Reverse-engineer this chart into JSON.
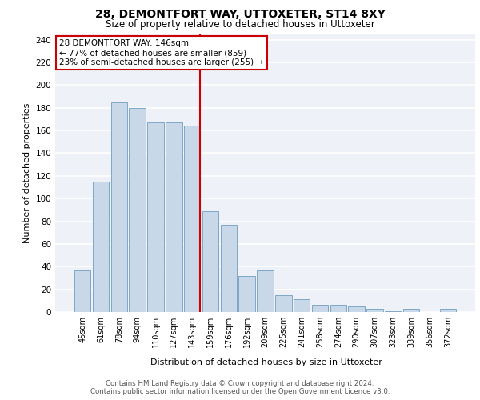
{
  "title1": "28, DEMONTFORT WAY, UTTOXETER, ST14 8XY",
  "title2": "Size of property relative to detached houses in Uttoxeter",
  "xlabel": "Distribution of detached houses by size in Uttoxeter",
  "ylabel": "Number of detached properties",
  "bar_labels": [
    "45sqm",
    "61sqm",
    "78sqm",
    "94sqm",
    "110sqm",
    "127sqm",
    "143sqm",
    "159sqm",
    "176sqm",
    "192sqm",
    "209sqm",
    "225sqm",
    "241sqm",
    "258sqm",
    "274sqm",
    "290sqm",
    "307sqm",
    "323sqm",
    "339sqm",
    "356sqm",
    "372sqm"
  ],
  "bar_values": [
    37,
    115,
    185,
    180,
    167,
    167,
    164,
    89,
    77,
    32,
    37,
    15,
    11,
    6,
    6,
    5,
    3,
    1,
    3,
    0,
    3
  ],
  "bar_color": "#c8d8e8",
  "bar_edge_color": "#7ea8c8",
  "bg_color": "#eef2f8",
  "grid_color": "#ffffff",
  "annotation_text": "28 DEMONTFORT WAY: 146sqm\n← 77% of detached houses are smaller (859)\n23% of semi-detached houses are larger (255) →",
  "annotation_box_color": "#ffffff",
  "annotation_box_edge": "#cc0000",
  "red_line_bin": 6,
  "red_line_color": "#cc0000",
  "footer_text": "Contains HM Land Registry data © Crown copyright and database right 2024.\nContains public sector information licensed under the Open Government Licence v3.0.",
  "ylim": [
    0,
    245
  ],
  "yticks": [
    0,
    20,
    40,
    60,
    80,
    100,
    120,
    140,
    160,
    180,
    200,
    220,
    240
  ]
}
